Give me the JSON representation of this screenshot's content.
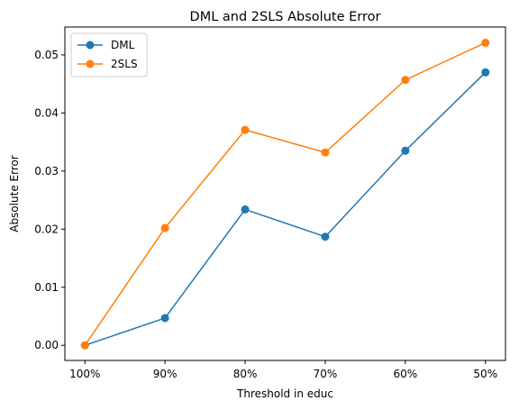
{
  "chart_data": {
    "type": "line",
    "title": "DML and 2SLS Absolute Error",
    "xlabel": "Threshold in educ",
    "ylabel": "Absolute Error",
    "categories": [
      "100%",
      "90%",
      "80%",
      "70%",
      "60%",
      "50%"
    ],
    "ylim": [
      -0.0026,
      0.0548
    ],
    "yticks": [
      0.0,
      0.01,
      0.02,
      0.03,
      0.04,
      0.05
    ],
    "ytick_labels": [
      "0.00",
      "0.01",
      "0.02",
      "0.03",
      "0.04",
      "0.05"
    ],
    "grid": false,
    "legend_position": "top-left",
    "series": [
      {
        "name": "DML",
        "color": "#1f77b4",
        "marker": "circle",
        "values": [
          0.0,
          0.0047,
          0.0234,
          0.0187,
          0.0335,
          0.047
        ]
      },
      {
        "name": "2SLS",
        "color": "#ff7f0e",
        "marker": "circle",
        "values": [
          0.0,
          0.0202,
          0.0371,
          0.0332,
          0.0457,
          0.0521
        ]
      }
    ]
  }
}
